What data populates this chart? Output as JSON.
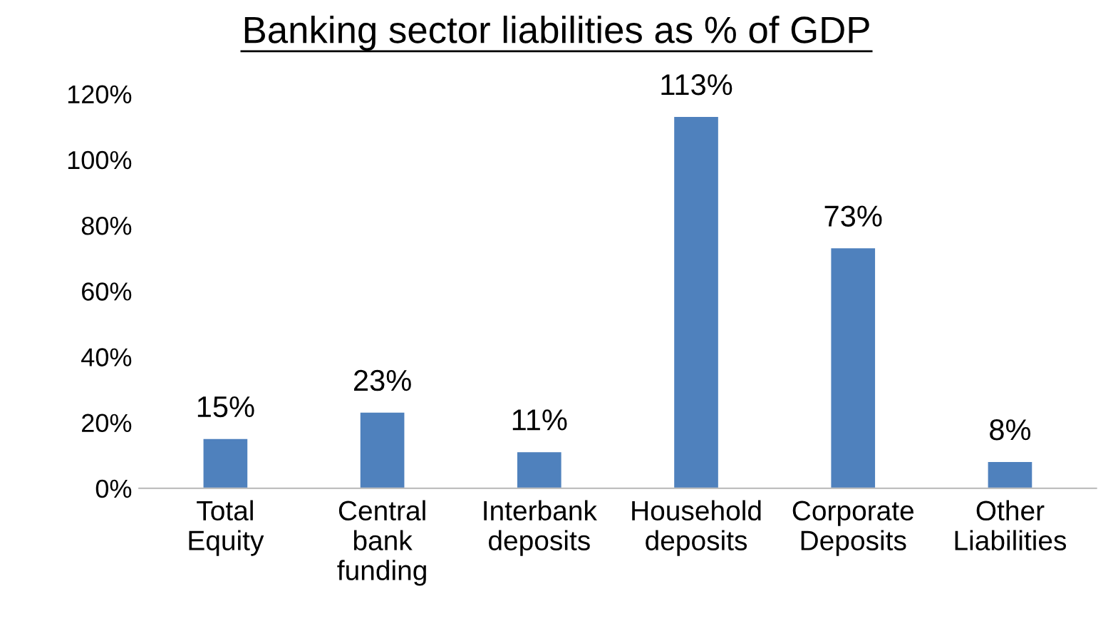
{
  "chart_data": {
    "type": "bar",
    "title": "Banking sector liabilities as % of GDP",
    "categories": [
      "Total\nEquity",
      "Central\nbank\nfunding",
      "Interbank\ndeposits",
      "Household\ndeposits",
      "Corporate\nDeposits",
      "Other\nLiabilities"
    ],
    "values": [
      15,
      23,
      11,
      113,
      73,
      8
    ],
    "value_labels": [
      "15%",
      "23%",
      "11%",
      "113%",
      "73%",
      "8%"
    ],
    "color": "#4f81bd",
    "ylim": [
      0,
      120
    ],
    "yticks": [
      {
        "value": 0,
        "label": "0%"
      },
      {
        "value": 20,
        "label": "20%"
      },
      {
        "value": 40,
        "label": "40%"
      },
      {
        "value": 60,
        "label": "60%"
      },
      {
        "value": 80,
        "label": "80%"
      },
      {
        "value": 100,
        "label": "100%"
      },
      {
        "value": 120,
        "label": "120%"
      }
    ],
    "grid": false,
    "legend": false
  }
}
